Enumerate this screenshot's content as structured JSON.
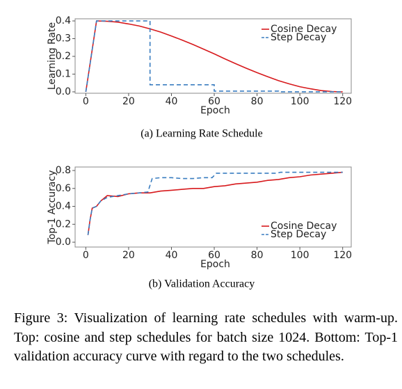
{
  "chart_data": [
    {
      "type": "line",
      "caption": "(a) Learning Rate Schedule",
      "xlabel": "Epoch",
      "ylabel": "Learning Rate",
      "xlim": [
        -5,
        124
      ],
      "xticks": [
        0,
        20,
        40,
        60,
        80,
        100,
        120
      ],
      "ylim": [
        -0.008,
        0.412
      ],
      "yticks": [
        {
          "value": 0,
          "label": "0.0"
        },
        0.1,
        0.2,
        0.3,
        0.4
      ],
      "legend": "upper right",
      "series": [
        {
          "name": "Cosine Decay",
          "color": "#d7191c",
          "style": "solid",
          "x": [
            0,
            5,
            10,
            15,
            20,
            25,
            30,
            35,
            40,
            45,
            50,
            55,
            60,
            65,
            70,
            75,
            80,
            85,
            90,
            95,
            100,
            105,
            110,
            115,
            120
          ],
          "values": [
            0,
            0.4,
            0.398,
            0.393,
            0.383,
            0.371,
            0.355,
            0.337,
            0.315,
            0.292,
            0.267,
            0.241,
            0.214,
            0.186,
            0.159,
            0.133,
            0.108,
            0.085,
            0.063,
            0.045,
            0.029,
            0.017,
            0.007,
            0.002,
            0
          ]
        },
        {
          "name": "Step Decay",
          "color": "#3a7dc0",
          "style": "dashed",
          "x": [
            0,
            5,
            30,
            30,
            60,
            60,
            90,
            90,
            120
          ],
          "values": [
            0,
            0.4,
            0.4,
            0.04,
            0.04,
            0.004,
            0.004,
            0.0004,
            0.0004
          ]
        }
      ]
    },
    {
      "type": "line",
      "caption": "(b) Validation Accuracy",
      "xlabel": "Epoch",
      "ylabel": "Top-1 Accuracy",
      "xlim": [
        -5,
        124
      ],
      "xticks": [
        0,
        20,
        40,
        60,
        80,
        100,
        120
      ],
      "ylim": [
        -0.054,
        0.839
      ],
      "yticks": [
        {
          "value": 0,
          "label": "0.0"
        },
        0.2,
        0.4,
        0.6,
        0.8
      ],
      "legend": "lower right",
      "series": [
        {
          "name": "Cosine Decay",
          "color": "#d7191c",
          "style": "solid",
          "x": [
            1,
            2,
            3,
            5,
            7,
            10,
            15,
            20,
            25,
            30,
            35,
            40,
            45,
            50,
            55,
            60,
            65,
            70,
            75,
            80,
            85,
            90,
            95,
            100,
            105,
            110,
            115,
            120
          ],
          "values": [
            0.08,
            0.25,
            0.38,
            0.4,
            0.46,
            0.52,
            0.51,
            0.54,
            0.55,
            0.55,
            0.57,
            0.58,
            0.59,
            0.6,
            0.6,
            0.62,
            0.63,
            0.65,
            0.66,
            0.67,
            0.69,
            0.7,
            0.72,
            0.73,
            0.75,
            0.76,
            0.77,
            0.78
          ]
        },
        {
          "name": "Step Decay",
          "color": "#3a7dc0",
          "style": "dashed",
          "x": [
            1,
            2,
            3,
            5,
            7,
            10,
            15,
            20,
            25,
            29,
            31,
            35,
            40,
            45,
            50,
            55,
            59,
            61,
            70,
            80,
            89,
            91,
            100,
            110,
            120
          ],
          "values": [
            0.08,
            0.25,
            0.38,
            0.4,
            0.46,
            0.5,
            0.52,
            0.54,
            0.55,
            0.56,
            0.71,
            0.72,
            0.72,
            0.71,
            0.71,
            0.72,
            0.72,
            0.77,
            0.77,
            0.77,
            0.77,
            0.78,
            0.78,
            0.78,
            0.78
          ]
        }
      ]
    }
  ],
  "figure_caption": "Figure 3: Visualization of learning rate schedules with warm-up. Top: cosine and step schedules for batch size 1024. Bottom: Top-1 validation accuracy curve with regard to the two schedules."
}
